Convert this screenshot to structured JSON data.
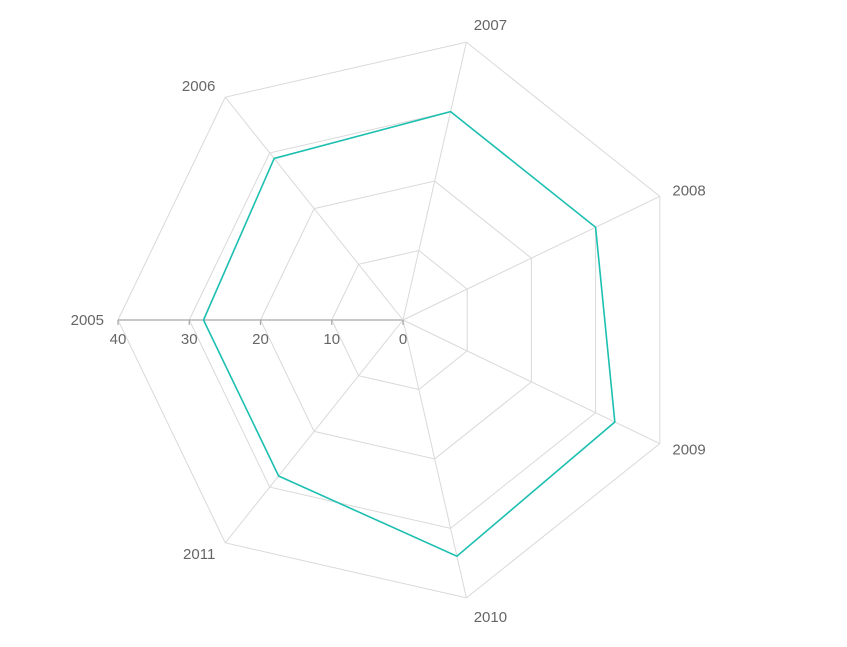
{
  "chart_data": {
    "type": "radar",
    "title": "",
    "categories": [
      "2005",
      "2006",
      "2007",
      "2008",
      "2009",
      "2010",
      "2011"
    ],
    "radial_ticks": [
      0,
      10,
      20,
      30,
      40
    ],
    "rlim": [
      0,
      40
    ],
    "grid": true,
    "legend": "none",
    "series": [
      {
        "values": [
          28,
          29,
          30,
          30,
          33,
          34,
          28
        ],
        "color": "#1cbfb0"
      }
    ]
  }
}
